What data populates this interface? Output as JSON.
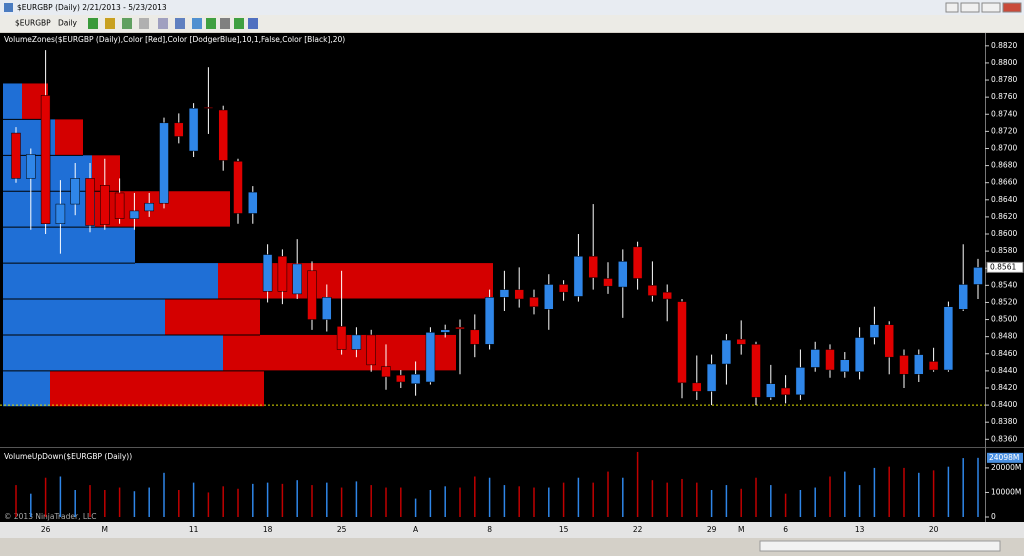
{
  "window": {
    "title": "$EURGBP (Daily)  2/21/2013 - 5/23/2013"
  },
  "toolbar": {
    "instrument": "$EURGBP",
    "interval": "Daily"
  },
  "chart_data": [
    {
      "type": "candlestick",
      "title": "VolumeZones($EURGBP (Daily),Color [Red],Color [DodgerBlue],10,1,False,Color [Black],20)",
      "up_color": "#2f86e8",
      "down_color": "#e00000",
      "zone_up_color": "#1f6fd6",
      "zone_down_color": "#d40000",
      "open": [
        0.8718,
        0.8665,
        0.8762,
        0.8612,
        0.8635,
        0.8665,
        0.8657,
        0.8648,
        0.8618,
        0.8627,
        0.8636,
        0.873,
        0.8697,
        0.8748,
        0.8745,
        0.8685,
        0.8624,
        0.8533,
        0.8574,
        0.853,
        0.8557,
        0.85,
        0.8492,
        0.8465,
        0.8482,
        0.8445,
        0.8435,
        0.8425,
        0.8427,
        0.8485,
        0.8491,
        0.8488,
        0.8471,
        0.8526,
        0.8535,
        0.8526,
        0.8512,
        0.8541,
        0.8527,
        0.8574,
        0.8548,
        0.8538,
        0.8585,
        0.854,
        0.8532,
        0.8521,
        0.8426,
        0.8416,
        0.8448,
        0.8477,
        0.8471,
        0.8409,
        0.842,
        0.8412,
        0.8444,
        0.8465,
        0.8439,
        0.8439,
        0.8479,
        0.8494,
        0.8458,
        0.8436,
        0.8451,
        0.8441,
        0.8512,
        0.8541
      ],
      "high": [
        0.8725,
        0.87,
        0.8815,
        0.8663,
        0.8683,
        0.8683,
        0.8688,
        0.8665,
        0.8648,
        0.8648,
        0.8736,
        0.8741,
        0.8753,
        0.8795,
        0.875,
        0.8688,
        0.8656,
        0.8588,
        0.8582,
        0.8594,
        0.8568,
        0.8541,
        0.8557,
        0.8491,
        0.8488,
        0.8471,
        0.8441,
        0.8451,
        0.8491,
        0.8494,
        0.85,
        0.8506,
        0.8535,
        0.8557,
        0.8561,
        0.8535,
        0.8553,
        0.8546,
        0.86,
        0.8635,
        0.8567,
        0.8582,
        0.8591,
        0.8568,
        0.8541,
        0.8524,
        0.8458,
        0.8459,
        0.8483,
        0.8499,
        0.8474,
        0.8447,
        0.8435,
        0.8465,
        0.8474,
        0.8471,
        0.8462,
        0.8491,
        0.8515,
        0.8498,
        0.8465,
        0.8465,
        0.8467,
        0.8521,
        0.8588,
        0.8571
      ],
      "low": [
        0.866,
        0.8605,
        0.86,
        0.8577,
        0.8622,
        0.8602,
        0.8605,
        0.8612,
        0.8605,
        0.862,
        0.863,
        0.8706,
        0.869,
        0.8717,
        0.8674,
        0.8612,
        0.8612,
        0.852,
        0.8518,
        0.8524,
        0.8488,
        0.8486,
        0.8459,
        0.8456,
        0.8439,
        0.8418,
        0.842,
        0.8411,
        0.8424,
        0.8479,
        0.8436,
        0.8456,
        0.8465,
        0.851,
        0.8514,
        0.8506,
        0.8488,
        0.8522,
        0.8521,
        0.8535,
        0.853,
        0.8502,
        0.8535,
        0.8521,
        0.8498,
        0.8408,
        0.8406,
        0.84,
        0.8424,
        0.8459,
        0.84,
        0.8406,
        0.8402,
        0.8406,
        0.8439,
        0.8432,
        0.8432,
        0.843,
        0.8471,
        0.8436,
        0.842,
        0.8427,
        0.8439,
        0.8439,
        0.851,
        0.8524
      ],
      "close": [
        0.8665,
        0.8693,
        0.8612,
        0.8635,
        0.8665,
        0.861,
        0.8611,
        0.8618,
        0.8627,
        0.8636,
        0.873,
        0.8714,
        0.8747,
        0.8747,
        0.8686,
        0.8624,
        0.8649,
        0.8576,
        0.8533,
        0.8565,
        0.85,
        0.8526,
        0.8465,
        0.8482,
        0.8447,
        0.8433,
        0.8427,
        0.8436,
        0.8485,
        0.8488,
        0.8489,
        0.8471,
        0.8526,
        0.8535,
        0.8524,
        0.8515,
        0.8541,
        0.8532,
        0.8574,
        0.8549,
        0.8539,
        0.8568,
        0.8548,
        0.8528,
        0.8524,
        0.8426,
        0.8416,
        0.8448,
        0.8476,
        0.8471,
        0.8409,
        0.8425,
        0.8412,
        0.8444,
        0.8465,
        0.8441,
        0.8453,
        0.8479,
        0.8494,
        0.8456,
        0.8436,
        0.8459,
        0.8441,
        0.8515,
        0.8541,
        0.8561
      ],
      "zones": [
        {
          "low": 0.8398,
          "high": 0.844,
          "up": 47,
          "down": 214
        },
        {
          "low": 0.844,
          "high": 0.8482,
          "up": 220,
          "down": 233
        },
        {
          "low": 0.8482,
          "high": 0.8524,
          "up": 162,
          "down": 95
        },
        {
          "low": 0.8524,
          "high": 0.8566,
          "up": 215,
          "down": 275
        },
        {
          "low": 0.8566,
          "high": 0.8608,
          "up": 132,
          "down": 0
        },
        {
          "low": 0.8608,
          "high": 0.865,
          "up": 92,
          "down": 135
        },
        {
          "low": 0.865,
          "high": 0.8692,
          "up": 89,
          "down": 28
        },
        {
          "low": 0.8692,
          "high": 0.8734,
          "up": 52,
          "down": 28
        },
        {
          "low": 0.8734,
          "high": 0.8776,
          "up": 19,
          "down": 26
        }
      ],
      "hline": 0.84,
      "hline_color": "#e0e000",
      "last_price": {
        "value": 0.8561,
        "label": "0.8561"
      },
      "ylim": [
        0.8351,
        0.8835
      ],
      "yticks": [
        {
          "value": 0.836,
          "label": "0.8360"
        },
        {
          "value": 0.838,
          "label": "0.8380"
        },
        {
          "value": 0.84,
          "label": "0.8400"
        },
        {
          "value": 0.842,
          "label": "0.8420"
        },
        {
          "value": 0.844,
          "label": "0.8440"
        },
        {
          "value": 0.846,
          "label": "0.8460"
        },
        {
          "value": 0.848,
          "label": "0.8480"
        },
        {
          "value": 0.85,
          "label": "0.8500"
        },
        {
          "value": 0.852,
          "label": "0.8520"
        },
        {
          "value": 0.854,
          "label": "0.8540"
        },
        {
          "value": 0.856,
          "label": "0.8560"
        },
        {
          "value": 0.858,
          "label": "0.8580"
        },
        {
          "value": 0.86,
          "label": "0.8600"
        },
        {
          "value": 0.862,
          "label": "0.8620"
        },
        {
          "value": 0.864,
          "label": "0.8640"
        },
        {
          "value": 0.866,
          "label": "0.8660"
        },
        {
          "value": 0.868,
          "label": "0.8680"
        },
        {
          "value": 0.87,
          "label": "0.8700"
        },
        {
          "value": 0.872,
          "label": "0.8720"
        },
        {
          "value": 0.874,
          "label": "0.8740"
        },
        {
          "value": 0.876,
          "label": "0.8760"
        },
        {
          "value": 0.878,
          "label": "0.8780"
        },
        {
          "value": 0.88,
          "label": "0.8800"
        },
        {
          "value": 0.882,
          "label": "0.8820"
        }
      ]
    },
    {
      "type": "bar",
      "title": "VolumeUpDown($EURGBP (Daily))",
      "annotation": "© 2013 NinjaTrader, LLC",
      "categories": [
        null,
        null,
        "26",
        null,
        null,
        null,
        "M",
        null,
        null,
        null,
        null,
        null,
        "11",
        null,
        null,
        null,
        null,
        "18",
        null,
        null,
        null,
        null,
        "25",
        null,
        null,
        null,
        null,
        "A",
        null,
        null,
        null,
        null,
        "8",
        null,
        null,
        null,
        null,
        "15",
        null,
        null,
        null,
        null,
        "22",
        null,
        null,
        null,
        null,
        "29",
        null,
        "M",
        null,
        null,
        "6",
        null,
        null,
        null,
        null,
        "13",
        null,
        null,
        null,
        null,
        "20",
        null,
        null,
        null
      ],
      "values": [
        13000,
        9500,
        16000,
        16500,
        11000,
        13000,
        11000,
        12000,
        10500,
        12000,
        18000,
        11000,
        14000,
        10000,
        12500,
        11500,
        13500,
        14000,
        13500,
        15000,
        13000,
        14000,
        12000,
        14500,
        13000,
        12000,
        12000,
        7500,
        11000,
        12500,
        12000,
        16500,
        16000,
        13000,
        12500,
        12000,
        12000,
        14000,
        16000,
        14000,
        18500,
        16000,
        26500,
        15000,
        14000,
        15500,
        14000,
        11000,
        13000,
        11500,
        16000,
        13000,
        9500,
        11000,
        12000,
        16500,
        18500,
        13000,
        20000,
        20500,
        20000,
        18000,
        19000,
        20500,
        24000,
        24098
      ],
      "up_color": "#2f86e8",
      "down_color": "#c00000",
      "last_volume": {
        "value": 24098,
        "label": "24098M"
      },
      "ylim": [
        0,
        27700
      ],
      "yticks": [
        0,
        {
          "value": 10000,
          "label": "10000M"
        },
        {
          "value": 20000,
          "label": "20000M"
        }
      ]
    }
  ]
}
